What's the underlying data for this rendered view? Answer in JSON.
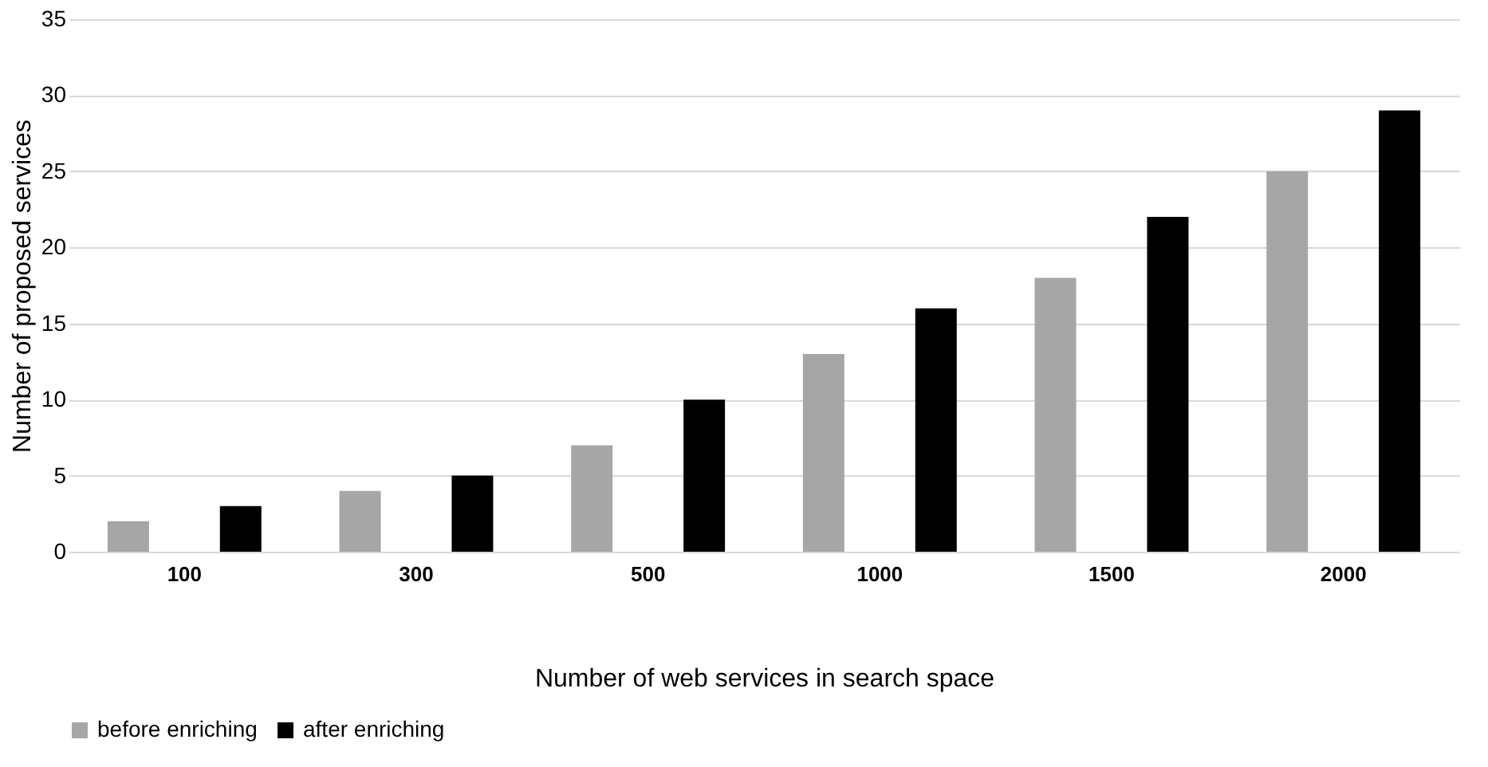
{
  "chart_data": {
    "type": "bar",
    "xlabel": "Number  of web services in search space",
    "ylabel": "Number  of proposed services",
    "categories": [
      "100",
      "300",
      "500",
      "1000",
      "1500",
      "2000"
    ],
    "series": [
      {
        "name": "before enriching",
        "color": "#a6a6a6",
        "values": [
          2,
          4,
          7,
          13,
          18,
          25
        ]
      },
      {
        "name": "after enriching",
        "color": "#000000",
        "values": [
          3,
          5,
          10,
          16,
          22,
          29
        ]
      }
    ],
    "ylim": [
      0,
      35
    ],
    "yticks": [
      0,
      5,
      10,
      15,
      20,
      25,
      30,
      35
    ],
    "grid": "y",
    "legend": "bottom"
  }
}
